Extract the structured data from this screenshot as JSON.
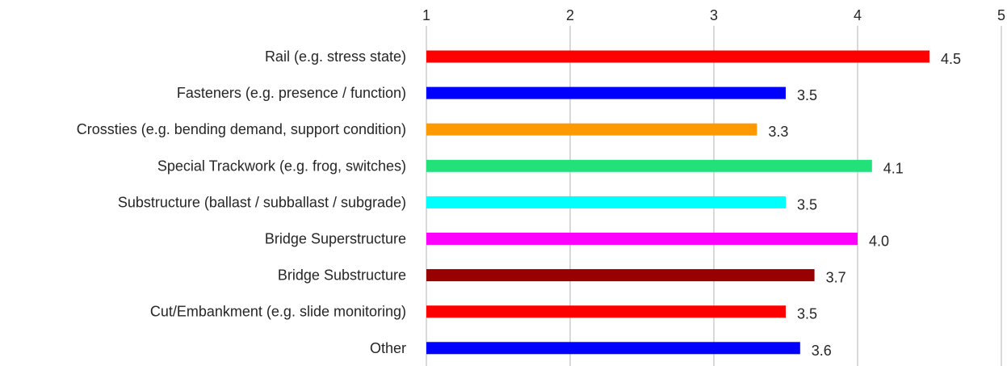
{
  "chart_data": {
    "type": "bar",
    "orientation": "horizontal",
    "title": "",
    "xlabel": "",
    "ylabel": "",
    "xlim": [
      1,
      5
    ],
    "xticks": [
      "1",
      "2",
      "3",
      "4",
      "5"
    ],
    "grid": "vertical",
    "legend": "none",
    "categories": [
      "Rail (e.g. stress state)",
      "Fasteners (e.g. presence / function)",
      "Crossties (e.g. bending demand, support condition)",
      "Special Trackwork (e.g. frog, switches)",
      "Substructure (ballast / subballast / subgrade)",
      "Bridge Superstructure",
      "Bridge Substructure",
      "Cut/Embankment (e.g. slide monitoring)",
      "Other"
    ],
    "values": [
      4.5,
      3.5,
      3.3,
      4.1,
      3.5,
      4.0,
      3.7,
      3.5,
      3.6
    ],
    "value_labels": [
      "4.5",
      "3.5",
      "3.3",
      "4.1",
      "3.5",
      "4.0",
      "3.7",
      "3.5",
      "3.6"
    ],
    "colors": [
      "#ff0000",
      "#0000ff",
      "#ff9900",
      "#22e07a",
      "#00ffff",
      "#ff00ff",
      "#990000",
      "#ff0000",
      "#0000ff"
    ]
  }
}
